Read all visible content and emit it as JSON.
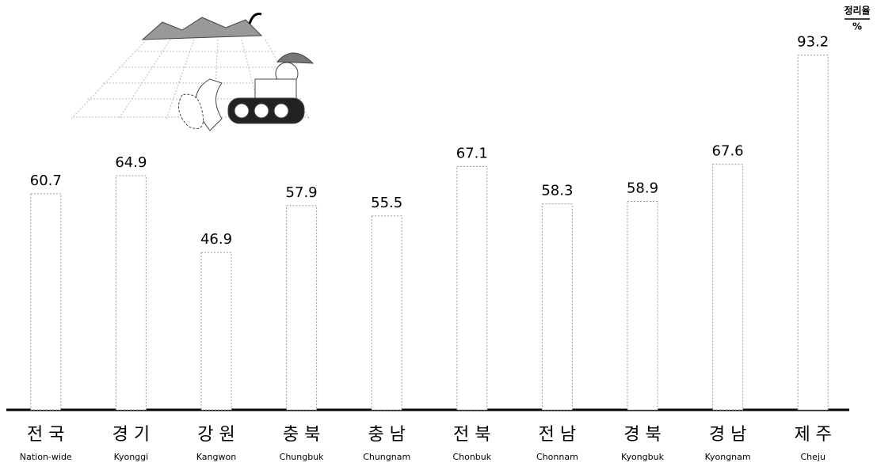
{
  "chart_data": {
    "type": "bar",
    "categories": [
      "전 국",
      "경 기",
      "강 원",
      "충 북",
      "충 남",
      "전 북",
      "전 남",
      "경 북",
      "경 남",
      "제 주"
    ],
    "category_subtitles": [
      "Nation-wide",
      "Kyonggi",
      "Kangwon",
      "Chungbuk",
      "Chungnam",
      "Chonbuk",
      "Chonnam",
      "Kyongbuk",
      "Kyongnam",
      "Cheju"
    ],
    "values": [
      60.7,
      64.9,
      46.9,
      57.9,
      55.5,
      67.1,
      58.3,
      58.9,
      67.6,
      93.2
    ],
    "value_label_unit_title": "정리율",
    "value_label_unit": "%",
    "color": "#ffffff",
    "ylim": [
      10,
      95
    ]
  }
}
